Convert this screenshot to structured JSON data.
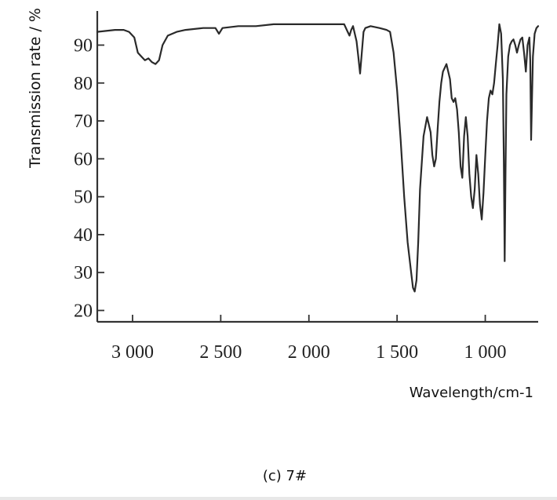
{
  "chart_data": {
    "type": "line",
    "title": "",
    "xlabel": "Wavelength/cm-1",
    "ylabel": "Transmission rate / %",
    "caption": "(c) 7#",
    "xlim": [
      3200,
      700
    ],
    "ylim": [
      17,
      99
    ],
    "x_reversed": true,
    "grid": false,
    "line_color": "#2a2a2a",
    "x_ticks": [
      {
        "value": 3000,
        "label": "3 000"
      },
      {
        "value": 2500,
        "label": "2 500"
      },
      {
        "value": 2000,
        "label": "2 000"
      },
      {
        "value": 1500,
        "label": "1 500"
      },
      {
        "value": 1000,
        "label": "1 000"
      }
    ],
    "y_ticks": [
      {
        "value": 90,
        "label": "90"
      },
      {
        "value": 80,
        "label": "80"
      },
      {
        "value": 70,
        "label": "70"
      },
      {
        "value": 60,
        "label": "60"
      },
      {
        "value": 50,
        "label": "50"
      },
      {
        "value": 40,
        "label": "40"
      },
      {
        "value": 30,
        "label": "30"
      },
      {
        "value": 20,
        "label": "20"
      }
    ],
    "series": [
      {
        "x": [
          3200,
          3100,
          3050,
          3020,
          2990,
          2970,
          2950,
          2930,
          2910,
          2890,
          2870,
          2850,
          2830,
          2800,
          2750,
          2700,
          2600,
          2530,
          2510,
          2490,
          2400,
          2300,
          2200,
          2100,
          2000,
          1900,
          1800,
          1780,
          1770,
          1760,
          1750,
          1730,
          1720,
          1710,
          1700,
          1690,
          1680,
          1650,
          1600,
          1560,
          1540,
          1520,
          1500,
          1480,
          1460,
          1440,
          1420,
          1410,
          1400,
          1390,
          1380,
          1370,
          1350,
          1330,
          1310,
          1300,
          1290,
          1280,
          1270,
          1260,
          1250,
          1240,
          1230,
          1220,
          1200,
          1190,
          1180,
          1170,
          1160,
          1150,
          1140,
          1130,
          1120,
          1110,
          1100,
          1090,
          1080,
          1070,
          1060,
          1050,
          1040,
          1030,
          1020,
          1010,
          1000,
          990,
          980,
          970,
          960,
          950,
          940,
          930,
          920,
          910,
          900,
          895,
          890,
          885,
          880,
          870,
          860,
          850,
          840,
          830,
          820,
          810,
          800,
          790,
          780,
          770,
          760,
          750,
          745,
          740,
          730,
          720,
          710,
          700
        ],
        "y": [
          93.5,
          94,
          94,
          93.5,
          92,
          88,
          87,
          86,
          86.5,
          85.5,
          85,
          86,
          90,
          92.5,
          93.5,
          94,
          94.5,
          94.5,
          93,
          94.5,
          95,
          95,
          95.5,
          95.5,
          95.5,
          95.5,
          95.5,
          93.5,
          92.5,
          94,
          95,
          91,
          87,
          82.5,
          88,
          93.5,
          94.5,
          95,
          94.5,
          94,
          93.5,
          88,
          78,
          65,
          50,
          38,
          30,
          26,
          25,
          28,
          38,
          52,
          66,
          71,
          67,
          61,
          58,
          60,
          68,
          75,
          80,
          83,
          84,
          85,
          81,
          76,
          75,
          76,
          73,
          67,
          58,
          55,
          66,
          71,
          66,
          56,
          50,
          47,
          52,
          61,
          56,
          48,
          44,
          51,
          61,
          70,
          76,
          78,
          77,
          80,
          85,
          90,
          95.5,
          93,
          81,
          60,
          33,
          57,
          77,
          87,
          90,
          91,
          91.5,
          90,
          88,
          90,
          91.5,
          92,
          88,
          83,
          90,
          92,
          86,
          65,
          87,
          93,
          94.5,
          95
        ]
      }
    ]
  }
}
